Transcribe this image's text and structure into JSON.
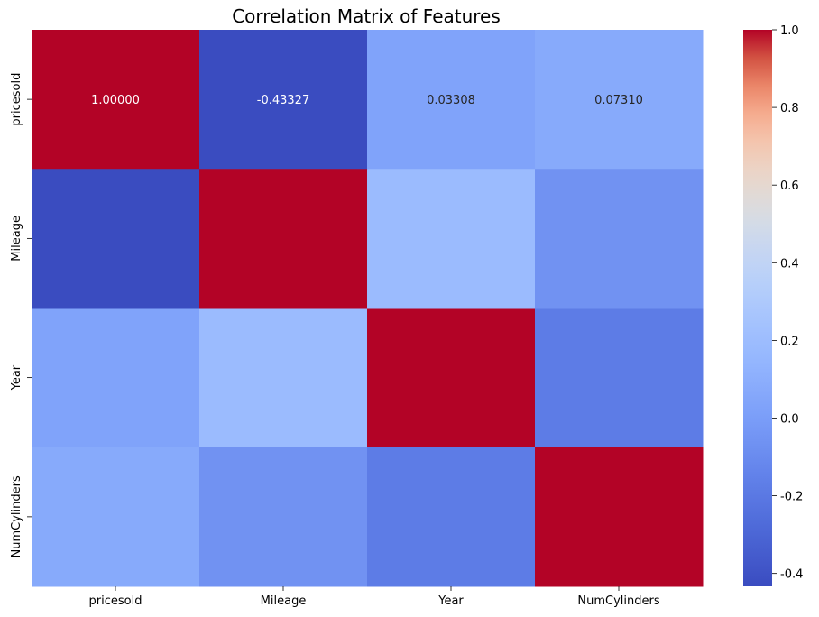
{
  "chart_data": {
    "type": "heatmap",
    "title": "Correlation Matrix of Features",
    "xlabel": "",
    "ylabel": "",
    "x_categories": [
      "pricesold",
      "Mileage",
      "Year",
      "NumCylinders"
    ],
    "y_categories": [
      "pricesold",
      "Mileage",
      "Year",
      "NumCylinders"
    ],
    "values": [
      [
        1.0,
        -0.43327,
        0.03308,
        0.0731
      ],
      [
        -0.43327,
        1.0,
        0.19,
        -0.06
      ],
      [
        0.03308,
        0.19,
        1.0,
        -0.18
      ],
      [
        0.0731,
        -0.06,
        -0.18,
        1.0
      ]
    ],
    "annotations": [
      [
        "1.00000",
        "-0.43327",
        "0.03308",
        "0.07310"
      ],
      [
        "",
        "",
        "",
        ""
      ],
      [
        "",
        "",
        "",
        ""
      ],
      [
        "",
        "",
        "",
        ""
      ]
    ],
    "colormap": "coolwarm",
    "vmin": -0.43327,
    "vmax": 1.0,
    "colorbar_ticks": [
      "-0.4",
      "-0.2",
      "0.0",
      "0.2",
      "0.4",
      "0.6",
      "0.8",
      "1.0"
    ],
    "colorbar_tick_values": [
      -0.4,
      -0.2,
      0.0,
      0.2,
      0.4,
      0.6,
      0.8,
      1.0
    ],
    "colors": {
      "low": "#3b4cc0",
      "mid": "#dddcdc",
      "high": "#b40426"
    }
  }
}
